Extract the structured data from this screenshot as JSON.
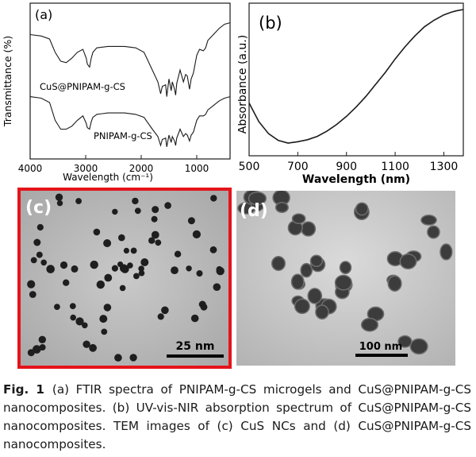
{
  "chart_data": [
    {
      "panel": "a",
      "type": "line",
      "title": "",
      "panel_label": "(a)",
      "xlabel": "Wavelength (cm⁻¹)",
      "ylabel": "Transmittance (%)",
      "x_ticks": [
        4000,
        3000,
        2000,
        1000
      ],
      "xlim": [
        4000,
        400
      ],
      "series": [
        {
          "name": "CuS@PNIPAM-g-CS",
          "x": [
            4000,
            3800,
            3650,
            3550,
            3450,
            3350,
            3250,
            3150,
            3050,
            2990,
            2970,
            2930,
            2900,
            2870,
            2800,
            2600,
            2300,
            2100,
            1950,
            1800,
            1700,
            1650,
            1620,
            1560,
            1540,
            1500,
            1460,
            1440,
            1400,
            1380,
            1360,
            1300,
            1240,
            1200,
            1170,
            1130,
            1100,
            1060,
            1000,
            950,
            880,
            840,
            800,
            700,
            600,
            500,
            400
          ],
          "y": [
            0.82,
            0.81,
            0.79,
            0.7,
            0.64,
            0.63,
            0.66,
            0.7,
            0.72,
            0.66,
            0.62,
            0.6,
            0.66,
            0.7,
            0.73,
            0.74,
            0.74,
            0.73,
            0.7,
            0.58,
            0.5,
            0.42,
            0.47,
            0.48,
            0.4,
            0.52,
            0.44,
            0.5,
            0.45,
            0.41,
            0.49,
            0.58,
            0.5,
            0.55,
            0.54,
            0.45,
            0.52,
            0.56,
            0.68,
            0.72,
            0.71,
            0.73,
            0.78,
            0.82,
            0.86,
            0.89,
            0.9
          ]
        },
        {
          "name": "PNIPAM-g-CS",
          "x": [
            4000,
            3800,
            3650,
            3550,
            3450,
            3350,
            3250,
            3150,
            3050,
            2990,
            2970,
            2930,
            2900,
            2870,
            2800,
            2600,
            2300,
            2100,
            1950,
            1800,
            1700,
            1650,
            1620,
            1560,
            1540,
            1500,
            1460,
            1440,
            1400,
            1380,
            1360,
            1300,
            1240,
            1200,
            1170,
            1130,
            1100,
            1060,
            1000,
            950,
            880,
            840,
            800,
            700,
            600,
            500,
            400
          ],
          "y": [
            0.4,
            0.39,
            0.36,
            0.24,
            0.18,
            0.18,
            0.2,
            0.24,
            0.27,
            0.22,
            0.19,
            0.18,
            0.23,
            0.26,
            0.28,
            0.29,
            0.29,
            0.28,
            0.26,
            0.18,
            0.13,
            0.07,
            0.11,
            0.12,
            0.06,
            0.14,
            0.09,
            0.13,
            0.1,
            0.07,
            0.12,
            0.18,
            0.13,
            0.15,
            0.14,
            0.1,
            0.14,
            0.16,
            0.24,
            0.27,
            0.27,
            0.28,
            0.31,
            0.34,
            0.37,
            0.39,
            0.4
          ]
        }
      ]
    },
    {
      "panel": "b",
      "type": "line",
      "title": "",
      "panel_label": "(b)",
      "xlabel": "Wavelength (nm)",
      "ylabel": "Absorbance (a.u.)",
      "x_ticks": [
        500,
        700,
        900,
        1100,
        1300
      ],
      "xlim": [
        500,
        1380
      ],
      "series": [
        {
          "x": [
            500,
            540,
            580,
            620,
            660,
            700,
            740,
            780,
            820,
            860,
            900,
            940,
            980,
            1020,
            1060,
            1100,
            1140,
            1180,
            1220,
            1260,
            1300,
            1330,
            1350,
            1380
          ],
          "y": [
            0.3,
            0.16,
            0.07,
            0.02,
            0.0,
            0.01,
            0.025,
            0.05,
            0.09,
            0.14,
            0.2,
            0.27,
            0.35,
            0.44,
            0.53,
            0.63,
            0.72,
            0.8,
            0.87,
            0.92,
            0.96,
            0.98,
            0.99,
            1.0
          ]
        }
      ]
    }
  ],
  "panels": {
    "c": {
      "label": "(c)",
      "scale_bar": "25 nm"
    },
    "d": {
      "label": "(d)",
      "scale_bar": "100 nm"
    }
  },
  "caption": {
    "label": "Fig. 1",
    "text": "(a) FTIR spectra of PNIPAM-g-CS microgels and CuS@PNIPAM-g-CS nanocomposites. (b) UV-vis-NIR absorption spectrum of CuS@PNIPAM-g-CS nanocomposites. TEM images of (c) CuS NCs and (d) CuS@PNIPAM-g-CS nanocomposites."
  }
}
